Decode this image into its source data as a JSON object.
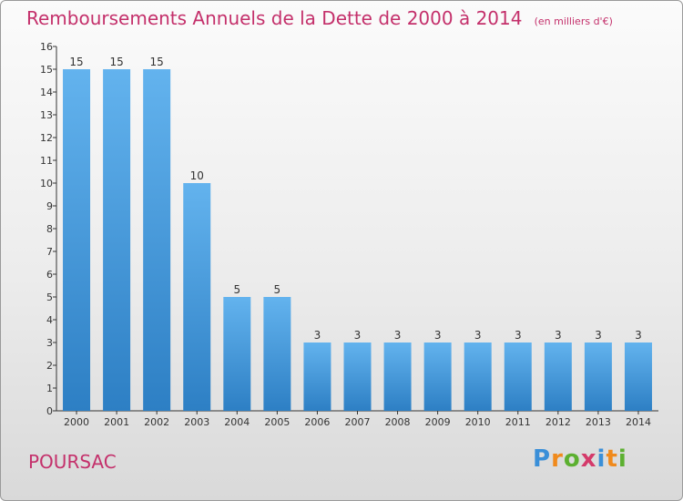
{
  "title": "Remboursements Annuels de la Dette de 2000 à 2014",
  "subtitle": "(en milliers d'€)",
  "place": "POURSAC",
  "logo": {
    "letters": [
      "P",
      "r",
      "o",
      "x",
      "i",
      "t",
      "i"
    ],
    "colors": [
      "#3a8fd8",
      "#f08a1c",
      "#5cb030",
      "#d43a6a",
      "#3a8fd8",
      "#f08a1c",
      "#5cb030"
    ]
  },
  "colors": {
    "bar_top": "#63b3ee",
    "bar_bottom": "#2d7fc4",
    "title": "#c4306b"
  },
  "chart_data": {
    "type": "bar",
    "categories": [
      "2000",
      "2001",
      "2002",
      "2003",
      "2004",
      "2005",
      "2006",
      "2007",
      "2008",
      "2009",
      "2010",
      "2011",
      "2012",
      "2013",
      "2014"
    ],
    "values": [
      15,
      15,
      15,
      10,
      5,
      5,
      3,
      3,
      3,
      3,
      3,
      3,
      3,
      3,
      3
    ],
    "data_labels": [
      "15",
      "15",
      "15",
      "10",
      "5",
      "5",
      "3",
      "3",
      "3",
      "3",
      "3",
      "3",
      "3",
      "3",
      "3"
    ],
    "y_ticks": [
      "0",
      "1",
      "2",
      "3",
      "4",
      "5",
      "6",
      "7",
      "8",
      "9",
      "10",
      "11",
      "12",
      "13",
      "14",
      "15",
      "16"
    ],
    "ylim": [
      0,
      16
    ],
    "grid": false
  }
}
